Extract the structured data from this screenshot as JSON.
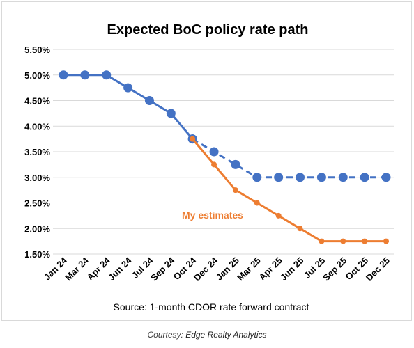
{
  "chart_data": {
    "type": "line",
    "title": "Expected BoC policy rate path",
    "xlabel": "Source: 1-month CDOR rate forward contract",
    "ylabel": "",
    "categories": [
      "Jan 24",
      "Mar 24",
      "Apr 24",
      "Jun 24",
      "Jul 24",
      "Sep 24",
      "Oct 24",
      "Dec 24",
      "Jan 25",
      "Mar 25",
      "Apr 25",
      "Jun 25",
      "Jul 25",
      "Sep 25",
      "Oct 25",
      "Dec 25"
    ],
    "ylim": [
      1.5,
      5.5
    ],
    "yticks": [
      1.5,
      2.0,
      2.5,
      3.0,
      3.5,
      4.0,
      4.5,
      5.0,
      5.5
    ],
    "ytick_labels": [
      "1.50%",
      "2.00%",
      "2.50%",
      "3.00%",
      "3.50%",
      "4.00%",
      "4.50%",
      "5.00%",
      "5.50%"
    ],
    "grid": true,
    "series": [
      {
        "name": "",
        "color": "#4472c4",
        "style": "solid",
        "marker": "large-circle",
        "values": [
          5.0,
          5.0,
          5.0,
          4.75,
          4.5,
          4.25,
          3.75,
          null,
          null,
          null,
          null,
          null,
          null,
          null,
          null,
          null
        ]
      },
      {
        "name": "",
        "color": "#4472c4",
        "style": "dashed",
        "marker": "large-circle",
        "values": [
          null,
          null,
          null,
          null,
          null,
          null,
          3.75,
          3.5,
          3.25,
          3.0,
          3.0,
          3.0,
          3.0,
          3.0,
          3.0,
          3.0
        ]
      },
      {
        "name": "My estimates",
        "color": "#ed7d31",
        "style": "solid",
        "marker": "small-circle",
        "values": [
          null,
          null,
          null,
          null,
          null,
          null,
          3.75,
          3.25,
          2.75,
          2.5,
          2.25,
          2.0,
          1.75,
          1.75,
          1.75,
          1.75
        ]
      }
    ],
    "annotations": [
      {
        "text": "My estimates",
        "color": "#ed7d31"
      }
    ]
  },
  "caption": {
    "prefix": "Courtesy:",
    "source": "Edge Realty Analytics"
  }
}
